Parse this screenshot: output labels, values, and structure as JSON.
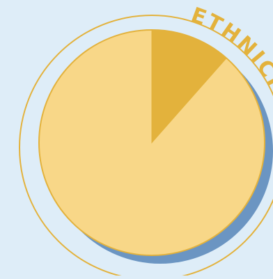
{
  "colors": {
    "background": "#deedf8",
    "outer_ring": "#e3b23c",
    "shadow": "#6b95c2",
    "slice_minor": "#e3b23c",
    "slice_major": "#f8d788",
    "pie_border": "#e3b23c",
    "title": "#e3b23c"
  },
  "chart_data": {
    "type": "pie",
    "title": "ETHNICITY",
    "slices": [
      {
        "name": "",
        "value": 11.5
      },
      {
        "name": "",
        "value": 88.5
      }
    ],
    "start_angle_deg": 0,
    "legend": "none",
    "decorations": [
      "outer-ring",
      "drop-shadow",
      "curved-title"
    ]
  }
}
